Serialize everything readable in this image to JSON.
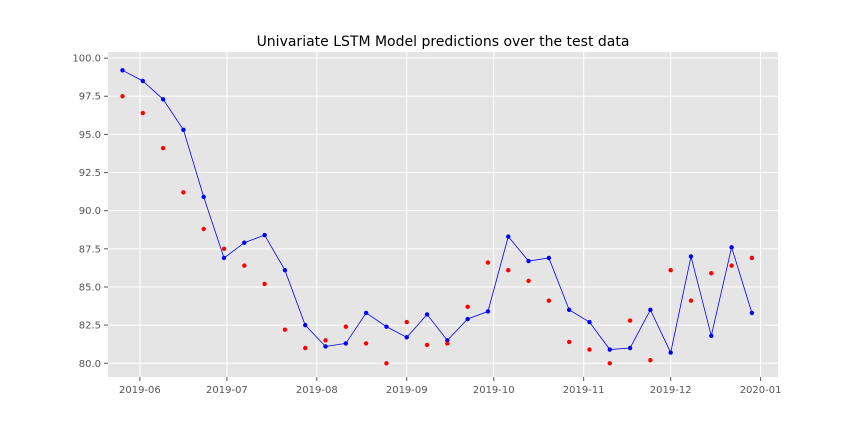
{
  "chart_data": {
    "type": "line",
    "title": "Univariate LSTM Model predictions over the test data",
    "xlabel": "",
    "ylabel": "",
    "x_axis_type": "date",
    "xlim": [
      "2019-05-21",
      "2020-01-07"
    ],
    "ylim": [
      79.1,
      100.4
    ],
    "y_ticks": [
      80.0,
      82.5,
      85.0,
      87.5,
      90.0,
      92.5,
      95.0,
      97.5,
      100.0
    ],
    "y_tick_labels": [
      "80.0",
      "82.5",
      "85.0",
      "87.5",
      "90.0",
      "92.5",
      "95.0",
      "97.5",
      "100.0"
    ],
    "x_ticks": [
      "2019-06-01",
      "2019-07-01",
      "2019-08-01",
      "2019-09-01",
      "2019-10-01",
      "2019-11-01",
      "2019-12-01",
      "2020-01-01"
    ],
    "x_tick_labels": [
      "2019-06",
      "2019-07",
      "2019-08",
      "2019-09",
      "2019-10",
      "2019-11",
      "2019-12",
      "2020-01"
    ],
    "grid": true,
    "legend": false,
    "colors": {
      "background": "#e5e5e5",
      "grid": "#ffffff",
      "actual": "#0000ff",
      "predicted": "#ff0000"
    },
    "series": [
      {
        "style": "line-with-markers",
        "color": "#0000ff",
        "points": [
          [
            "2019-05-26",
            99.2
          ],
          [
            "2019-06-02",
            98.5
          ],
          [
            "2019-06-09",
            97.3
          ],
          [
            "2019-06-16",
            95.3
          ],
          [
            "2019-06-23",
            90.9
          ],
          [
            "2019-06-30",
            86.9
          ],
          [
            "2019-07-07",
            87.9
          ],
          [
            "2019-07-14",
            88.4
          ],
          [
            "2019-07-21",
            86.1
          ],
          [
            "2019-07-28",
            82.5
          ],
          [
            "2019-08-04",
            81.1
          ],
          [
            "2019-08-11",
            81.3
          ],
          [
            "2019-08-18",
            83.3
          ],
          [
            "2019-08-25",
            82.4
          ],
          [
            "2019-09-01",
            81.7
          ],
          [
            "2019-09-08",
            83.2
          ],
          [
            "2019-09-15",
            81.5
          ],
          [
            "2019-09-22",
            82.9
          ],
          [
            "2019-09-29",
            83.4
          ],
          [
            "2019-10-06",
            88.3
          ],
          [
            "2019-10-13",
            86.7
          ],
          [
            "2019-10-20",
            86.9
          ],
          [
            "2019-10-27",
            83.5
          ],
          [
            "2019-11-03",
            82.7
          ],
          [
            "2019-11-10",
            80.9
          ],
          [
            "2019-11-17",
            81.0
          ],
          [
            "2019-11-24",
            83.5
          ],
          [
            "2019-12-01",
            80.7
          ],
          [
            "2019-12-08",
            87.0
          ],
          [
            "2019-12-15",
            81.8
          ],
          [
            "2019-12-22",
            87.6
          ],
          [
            "2019-12-29",
            83.3
          ]
        ]
      },
      {
        "style": "markers",
        "color": "#ff0000",
        "points": [
          [
            "2019-05-26",
            97.5
          ],
          [
            "2019-06-02",
            96.4
          ],
          [
            "2019-06-09",
            94.1
          ],
          [
            "2019-06-16",
            91.2
          ],
          [
            "2019-06-23",
            88.8
          ],
          [
            "2019-06-30",
            87.5
          ],
          [
            "2019-07-07",
            86.4
          ],
          [
            "2019-07-14",
            85.2
          ],
          [
            "2019-07-21",
            82.2
          ],
          [
            "2019-07-28",
            81.0
          ],
          [
            "2019-08-04",
            81.5
          ],
          [
            "2019-08-11",
            82.4
          ],
          [
            "2019-08-18",
            81.3
          ],
          [
            "2019-08-25",
            80.0
          ],
          [
            "2019-09-01",
            82.7
          ],
          [
            "2019-09-08",
            81.2
          ],
          [
            "2019-09-15",
            81.3
          ],
          [
            "2019-09-22",
            83.7
          ],
          [
            "2019-09-29",
            86.6
          ],
          [
            "2019-10-06",
            86.1
          ],
          [
            "2019-10-13",
            85.4
          ],
          [
            "2019-10-20",
            84.1
          ],
          [
            "2019-10-27",
            81.4
          ],
          [
            "2019-11-03",
            80.9
          ],
          [
            "2019-11-10",
            80.0
          ],
          [
            "2019-11-17",
            82.8
          ],
          [
            "2019-11-24",
            80.2
          ],
          [
            "2019-12-01",
            86.1
          ],
          [
            "2019-12-08",
            84.1
          ],
          [
            "2019-12-15",
            85.9
          ],
          [
            "2019-12-22",
            86.4
          ],
          [
            "2019-12-29",
            86.9
          ]
        ]
      }
    ]
  }
}
